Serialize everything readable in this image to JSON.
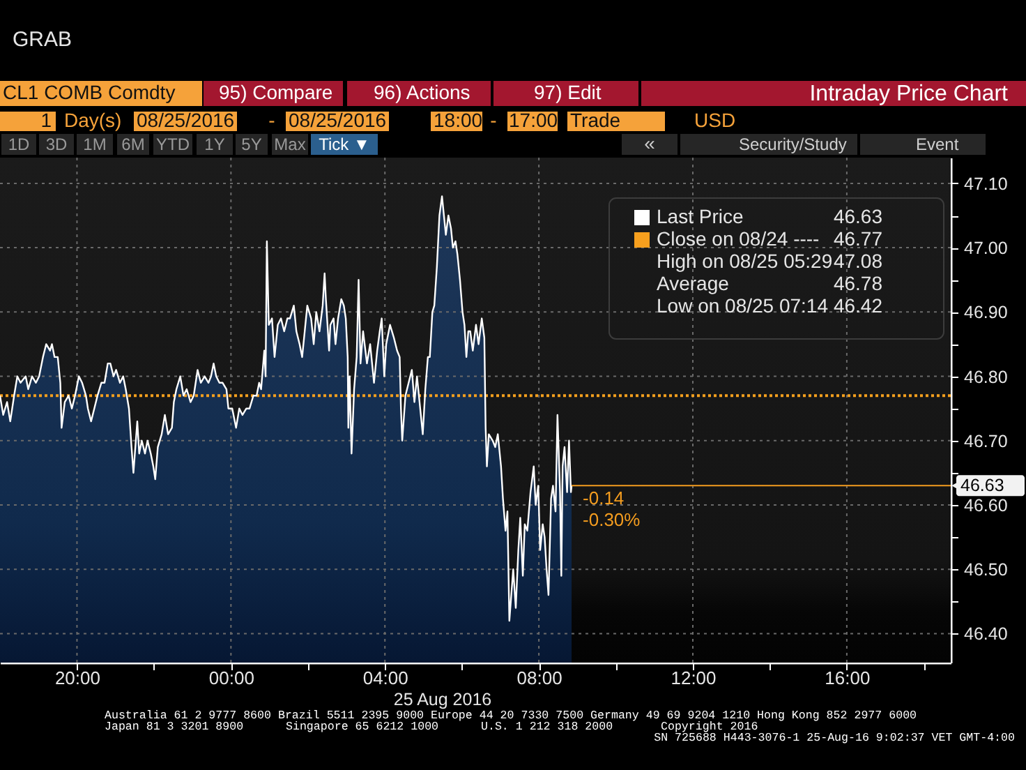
{
  "chart_data": {
    "type": "area",
    "title": "Intraday Price Chart",
    "subtitle": "CL1 COMB Comdty",
    "xlabel": "25 Aug 2016",
    "x": [
      "2016-08-24T18:00",
      "2016-08-24T18:05",
      "2016-08-24T18:11",
      "2016-08-24T18:16",
      "2016-08-24T18:22",
      "2016-08-24T18:27",
      "2016-08-24T18:32",
      "2016-08-24T18:40",
      "2016-08-24T18:44",
      "2016-08-24T18:50",
      "2016-08-24T18:56",
      "2016-08-24T19:01",
      "2016-08-24T19:07",
      "2016-08-24T19:12",
      "2016-08-24T19:18",
      "2016-08-24T19:21",
      "2016-08-24T19:25",
      "2016-08-24T19:30",
      "2016-08-24T19:34",
      "2016-08-24T19:36",
      "2016-08-24T19:41",
      "2016-08-24T19:47",
      "2016-08-24T19:52",
      "2016-08-24T19:57",
      "2016-08-24T20:03",
      "2016-08-24T20:08",
      "2016-08-24T20:14",
      "2016-08-24T20:17",
      "2016-08-24T20:22",
      "2016-08-24T20:27",
      "2016-08-24T20:32",
      "2016-08-24T20:38",
      "2016-08-24T20:43",
      "2016-08-24T20:48",
      "2016-08-24T20:52",
      "2016-08-24T20:57",
      "2016-08-24T21:01",
      "2016-08-24T21:07",
      "2016-08-24T21:12",
      "2016-08-24T21:16",
      "2016-08-24T21:21",
      "2016-08-24T21:25",
      "2016-08-24T21:28",
      "2016-08-24T21:34",
      "2016-08-24T21:37",
      "2016-08-24T21:41",
      "2016-08-24T21:46",
      "2016-08-24T21:50",
      "2016-08-24T21:55",
      "2016-08-24T21:59",
      "2016-08-24T22:02",
      "2016-08-24T22:06",
      "2016-08-24T22:12",
      "2016-08-24T22:17",
      "2016-08-24T22:22",
      "2016-08-24T22:28",
      "2016-08-24T22:31",
      "2016-08-24T22:35",
      "2016-08-24T22:41",
      "2016-08-24T22:46",
      "2016-08-24T22:51",
      "2016-08-24T22:57",
      "2016-08-24T23:02",
      "2016-08-24T23:08",
      "2016-08-24T23:13",
      "2016-08-24T23:19",
      "2016-08-24T23:25",
      "2016-08-24T23:29",
      "2016-08-24T23:33",
      "2016-08-24T23:37",
      "2016-08-24T23:42",
      "2016-08-24T23:47",
      "2016-08-24T23:53",
      "2016-08-24T23:56",
      "2016-08-25T00:02",
      "2016-08-25T00:08",
      "2016-08-25T00:13",
      "2016-08-25T00:18",
      "2016-08-25T00:24",
      "2016-08-25T00:29",
      "2016-08-25T00:35",
      "2016-08-25T00:40",
      "2016-08-25T00:44",
      "2016-08-25T00:47",
      "2016-08-25T00:52",
      "2016-08-25T00:54",
      "2016-08-25T00:56",
      "2016-08-25T00:59",
      "2016-08-25T01:04",
      "2016-08-25T01:08",
      "2016-08-25T01:13",
      "2016-08-25T01:18",
      "2016-08-25T01:23",
      "2016-08-25T01:28",
      "2016-08-25T01:32",
      "2016-08-25T01:38",
      "2016-08-25T01:42",
      "2016-08-25T01:47",
      "2016-08-25T01:51",
      "2016-08-25T01:55",
      "2016-08-25T01:59",
      "2016-08-25T02:05",
      "2016-08-25T02:09",
      "2016-08-25T02:13",
      "2016-08-25T02:18",
      "2016-08-25T02:23",
      "2016-08-25T02:26",
      "2016-08-25T02:28",
      "2016-08-25T02:33",
      "2016-08-25T02:35",
      "2016-08-25T02:40",
      "2016-08-25T02:43",
      "2016-08-25T02:47",
      "2016-08-25T02:52",
      "2016-08-25T02:56",
      "2016-08-25T02:59",
      "2016-08-25T03:02",
      "2016-08-25T03:03",
      "2016-08-25T03:05",
      "2016-08-25T03:08",
      "2016-08-25T03:12",
      "2016-08-25T03:16",
      "2016-08-25T03:19",
      "2016-08-25T03:22",
      "2016-08-25T03:26",
      "2016-08-25T03:32",
      "2016-08-25T03:37",
      "2016-08-25T03:43",
      "2016-08-25T03:48",
      "2016-08-25T03:52",
      "2016-08-25T03:55",
      "2016-08-25T03:59",
      "2016-08-25T04:02",
      "2016-08-25T04:08",
      "2016-08-25T04:14",
      "2016-08-25T04:19",
      "2016-08-25T04:23",
      "2016-08-25T04:25",
      "2016-08-25T04:27",
      "2016-08-25T04:32",
      "2016-08-25T04:37",
      "2016-08-25T04:42",
      "2016-08-25T04:46",
      "2016-08-25T04:50",
      "2016-08-25T04:56",
      "2016-08-25T04:59",
      "2016-08-25T05:03",
      "2016-08-25T05:07",
      "2016-08-25T05:10",
      "2016-08-25T05:14",
      "2016-08-25T05:17",
      "2016-08-25T05:21",
      "2016-08-25T05:25",
      "2016-08-25T05:29",
      "2016-08-25T05:32",
      "2016-08-25T05:35",
      "2016-08-25T05:39",
      "2016-08-25T05:43",
      "2016-08-25T05:46",
      "2016-08-25T05:50",
      "2016-08-25T05:53",
      "2016-08-25T05:57",
      "2016-08-25T06:01",
      "2016-08-25T06:04",
      "2016-08-25T06:07",
      "2016-08-25T06:10",
      "2016-08-25T06:13",
      "2016-08-25T06:17",
      "2016-08-25T06:22",
      "2016-08-25T06:26",
      "2016-08-25T06:31",
      "2016-08-25T06:35",
      "2016-08-25T06:37",
      "2016-08-25T06:39",
      "2016-08-25T06:42",
      "2016-08-25T06:48",
      "2016-08-25T06:52",
      "2016-08-25T06:56",
      "2016-08-25T07:01",
      "2016-08-25T07:04",
      "2016-08-25T07:08",
      "2016-08-25T07:11",
      "2016-08-25T07:14",
      "2016-08-25T07:20",
      "2016-08-25T07:24",
      "2016-08-25T07:28",
      "2016-08-25T07:31",
      "2016-08-25T07:35",
      "2016-08-25T07:38",
      "2016-08-25T07:42",
      "2016-08-25T07:47",
      "2016-08-25T07:52",
      "2016-08-25T07:55",
      "2016-08-25T07:59",
      "2016-08-25T08:02",
      "2016-08-25T08:06",
      "2016-08-25T08:09",
      "2016-08-25T08:12",
      "2016-08-25T08:15",
      "2016-08-25T08:19",
      "2016-08-25T08:22",
      "2016-08-25T08:26",
      "2016-08-25T08:29",
      "2016-08-25T08:33",
      "2016-08-25T08:35",
      "2016-08-25T08:37",
      "2016-08-25T08:40",
      "2016-08-25T08:44",
      "2016-08-25T08:47",
      "2016-08-25T08:50",
      "2016-08-25T08:51"
    ],
    "series": [
      {
        "name": "Last Price",
        "color": "#ffffff",
        "values": [
          46.77,
          46.74,
          46.76,
          46.73,
          46.77,
          46.8,
          46.79,
          46.8,
          46.78,
          46.8,
          46.79,
          46.8,
          46.83,
          46.85,
          46.84,
          46.85,
          46.83,
          46.83,
          46.79,
          46.72,
          46.76,
          46.77,
          46.75,
          46.77,
          46.8,
          46.79,
          46.77,
          46.75,
          46.73,
          46.75,
          46.77,
          46.79,
          46.79,
          46.82,
          46.82,
          46.8,
          46.81,
          46.79,
          46.8,
          46.78,
          46.75,
          46.69,
          46.65,
          46.73,
          46.68,
          46.7,
          46.68,
          46.7,
          46.68,
          46.66,
          46.64,
          46.69,
          46.71,
          46.74,
          46.71,
          46.72,
          46.76,
          46.78,
          46.8,
          46.77,
          46.78,
          46.76,
          46.77,
          46.81,
          46.79,
          46.8,
          46.79,
          46.8,
          46.82,
          46.8,
          46.79,
          46.79,
          46.78,
          46.75,
          46.75,
          46.72,
          46.75,
          46.74,
          46.75,
          46.75,
          46.77,
          46.77,
          46.79,
          46.78,
          46.84,
          46.8,
          47.01,
          46.88,
          46.89,
          46.83,
          46.88,
          46.89,
          46.87,
          46.89,
          46.89,
          46.91,
          46.87,
          46.85,
          46.83,
          46.87,
          46.91,
          46.89,
          46.85,
          46.9,
          46.87,
          46.91,
          46.96,
          46.92,
          46.84,
          46.88,
          46.89,
          46.85,
          46.89,
          46.92,
          46.91,
          46.89,
          46.83,
          46.72,
          46.8,
          46.68,
          46.78,
          46.83,
          46.95,
          46.82,
          46.87,
          46.82,
          46.85,
          46.79,
          46.84,
          46.87,
          46.89,
          46.8,
          46.85,
          46.88,
          46.86,
          46.84,
          46.83,
          46.75,
          46.7,
          46.77,
          46.79,
          46.81,
          46.76,
          46.8,
          46.74,
          46.71,
          46.78,
          46.83,
          46.83,
          46.9,
          46.91,
          46.97,
          47.05,
          47.08,
          47.05,
          47.02,
          47.05,
          47.03,
          47.0,
          47.01,
          46.99,
          46.95,
          46.9,
          46.88,
          46.83,
          46.87,
          46.87,
          46.84,
          46.88,
          46.85,
          46.89,
          46.86,
          46.72,
          46.66,
          46.71,
          46.7,
          46.69,
          46.71,
          46.66,
          46.61,
          46.56,
          46.59,
          46.42,
          46.5,
          46.44,
          46.53,
          46.58,
          46.49,
          46.57,
          46.56,
          46.62,
          46.66,
          46.6,
          46.63,
          46.53,
          46.57,
          46.55,
          46.5,
          46.46,
          46.61,
          46.63,
          46.59,
          46.74,
          46.62,
          46.49,
          46.66,
          46.69,
          46.62,
          46.7,
          46.62,
          46.63
        ]
      }
    ],
    "xlim": [
      "2016-08-24T18:00",
      "2016-08-25T18:42"
    ],
    "xticks": [
      {
        "value": "2016-08-24T20:00",
        "label": "20:00"
      },
      {
        "value": "2016-08-24T22:00",
        "label": null
      },
      {
        "value": "2016-08-25T00:00",
        "label": "00:00"
      },
      {
        "value": "2016-08-25T02:00",
        "label": null
      },
      {
        "value": "2016-08-25T04:00",
        "label": "04:00"
      },
      {
        "value": "2016-08-25T06:00",
        "label": null
      },
      {
        "value": "2016-08-25T08:00",
        "label": "08:00"
      },
      {
        "value": "2016-08-25T10:00",
        "label": null
      },
      {
        "value": "2016-08-25T12:00",
        "label": "12:00"
      },
      {
        "value": "2016-08-25T14:00",
        "label": null
      },
      {
        "value": "2016-08-25T16:00",
        "label": "16:00"
      },
      {
        "value": "2016-08-25T18:00",
        "label": null
      }
    ],
    "ylim": [
      46.355,
      47.14
    ],
    "yticks": [
      {
        "value": 46.4,
        "label": "46.40"
      },
      {
        "value": 46.45,
        "label": null
      },
      {
        "value": 46.5,
        "label": "46.50"
      },
      {
        "value": 46.55,
        "label": null
      },
      {
        "value": 46.6,
        "label": "46.60"
      },
      {
        "value": 46.65,
        "label": null
      },
      {
        "value": 46.7,
        "label": "46.70"
      },
      {
        "value": 46.75,
        "label": null
      },
      {
        "value": 46.8,
        "label": "46.80"
      },
      {
        "value": 46.85,
        "label": null
      },
      {
        "value": 46.9,
        "label": "46.90"
      },
      {
        "value": 46.95,
        "label": null
      },
      {
        "value": 47.0,
        "label": "47.00"
      },
      {
        "value": 47.05,
        "label": null
      },
      {
        "value": 47.1,
        "label": "47.10"
      }
    ],
    "ref_lines": [
      {
        "axis": "y",
        "value": 46.77,
        "label": "Close on 08/24 ----",
        "color": "#f7a01e",
        "line_style": "dotted"
      }
    ],
    "grid": true,
    "legend": "top right",
    "annotations": [
      "GRAB",
      "95) Compare",
      "96) Actions",
      "97) Edit",
      "1",
      "Day(s)",
      "08/25/2016",
      "-",
      "08/25/2016",
      "18:00",
      "-",
      "17:00",
      "Trade",
      "USD",
      "1D",
      "3D",
      "1M",
      "6M",
      "YTD",
      "1Y",
      "5Y",
      "Max",
      "Tick ▼",
      "«",
      "Security/Study",
      "Event",
      "46.63",
      "46.77",
      "High on 08/25 05:29",
      "47.08",
      "Average",
      "46.78",
      "Low on 08/25 07:14",
      "46.42",
      "46.63",
      "-0.14",
      "-0.30%",
      "Australia 61 2 9777 8600 Brazil 5511 2395 9000 Europe 44 20 7330 7500 Germany 49 69 9204 1210 Hong Kong 852 2977 6000",
      "Japan 81 3 3201 8900",
      "Singapore 65 6212 1000",
      "U.S. 1 212 318 2000",
      "Copyright 2016",
      "SN 725688 H443-3076-1 25-Aug-16 9:02:37 VET GMT-4:00"
    ]
  }
}
